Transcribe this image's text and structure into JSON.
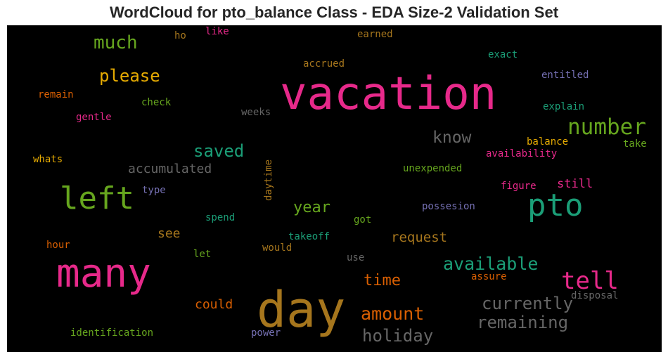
{
  "chart_data": {
    "type": "wordcloud",
    "title": "WordCloud for pto_balance Class - EDA Size-2 Validation Set",
    "background": "#000000",
    "words": [
      {
        "text": "vacation",
        "color": "#e7298a"
      },
      {
        "text": "day",
        "color": "#a6761d"
      },
      {
        "text": "many",
        "color": "#e7298a"
      },
      {
        "text": "left",
        "color": "#66a61e"
      },
      {
        "text": "pto",
        "color": "#1b9e77"
      },
      {
        "text": "number",
        "color": "#66a61e"
      },
      {
        "text": "tell",
        "color": "#e7298a"
      },
      {
        "text": "available",
        "color": "#1b9e77"
      },
      {
        "text": "currently",
        "color": "#666666"
      },
      {
        "text": "remaining",
        "color": "#666666"
      },
      {
        "text": "amount",
        "color": "#d95f02"
      },
      {
        "text": "holiday",
        "color": "#666666"
      },
      {
        "text": "much",
        "color": "#66a61e"
      },
      {
        "text": "please",
        "color": "#e6ab02"
      },
      {
        "text": "saved",
        "color": "#1b9e77"
      },
      {
        "text": "know",
        "color": "#666666"
      },
      {
        "text": "year",
        "color": "#66a61e"
      },
      {
        "text": "time",
        "color": "#d95f02"
      },
      {
        "text": "request",
        "color": "#a6761d"
      },
      {
        "text": "accumulated",
        "color": "#666666"
      },
      {
        "text": "could",
        "color": "#d95f02"
      },
      {
        "text": "see",
        "color": "#a6761d"
      },
      {
        "text": "still",
        "color": "#e7298a"
      },
      {
        "text": "accrued",
        "color": "#a6761d"
      },
      {
        "text": "earned",
        "color": "#a6761d"
      },
      {
        "text": "exact",
        "color": "#1b9e77"
      },
      {
        "text": "entitled",
        "color": "#7570b3"
      },
      {
        "text": "explain",
        "color": "#1b9e77"
      },
      {
        "text": "balance",
        "color": "#e6ab02"
      },
      {
        "text": "take",
        "color": "#66a61e"
      },
      {
        "text": "availability",
        "color": "#e7298a"
      },
      {
        "text": "figure",
        "color": "#e7298a"
      },
      {
        "text": "unexpended",
        "color": "#66a61e"
      },
      {
        "text": "possesion",
        "color": "#7570b3"
      },
      {
        "text": "got",
        "color": "#66a61e"
      },
      {
        "text": "takeoff",
        "color": "#1b9e77"
      },
      {
        "text": "use",
        "color": "#666666"
      },
      {
        "text": "assure",
        "color": "#d95f02"
      },
      {
        "text": "disposal",
        "color": "#666666"
      },
      {
        "text": "power",
        "color": "#7570b3"
      },
      {
        "text": "identification",
        "color": "#66a61e"
      },
      {
        "text": "hour",
        "color": "#d95f02"
      },
      {
        "text": "let",
        "color": "#66a61e"
      },
      {
        "text": "would",
        "color": "#a6761d"
      },
      {
        "text": "spend",
        "color": "#1b9e77"
      },
      {
        "text": "type",
        "color": "#7570b3"
      },
      {
        "text": "daytime",
        "color": "#a6761d"
      },
      {
        "text": "whats",
        "color": "#e6ab02"
      },
      {
        "text": "gentle",
        "color": "#e7298a"
      },
      {
        "text": "check",
        "color": "#66a61e"
      },
      {
        "text": "weeks",
        "color": "#666666"
      },
      {
        "text": "remain",
        "color": "#d95f02"
      },
      {
        "text": "ho",
        "color": "#a6761d"
      },
      {
        "text": "like",
        "color": "#e7298a"
      }
    ]
  }
}
